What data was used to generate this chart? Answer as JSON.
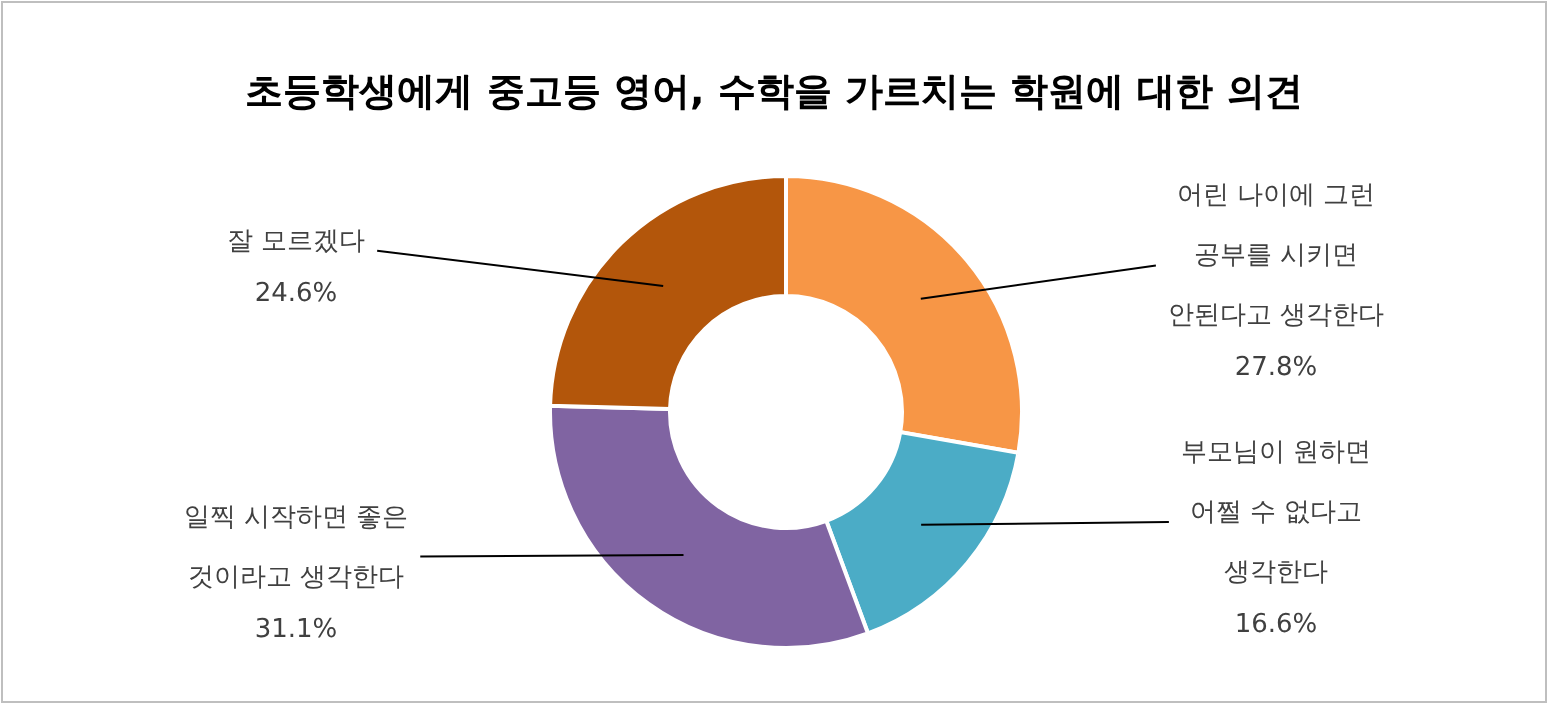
{
  "chart_data": {
    "type": "donut",
    "title": "초등학생에게 중고등 영어, 수학을 가르치는 학원에 대한 의견",
    "categories": [
      "어린 나이에 그런 공부를 시키면 안된다고 생각한다",
      "부모님이 원하면 어쩔 수 없다고 생각한다",
      "일찍 시작하면 좋은 것이라고 생각한다",
      "잘 모르겠다"
    ],
    "values": [
      27.8,
      16.6,
      31.1,
      24.6
    ],
    "value_labels": [
      "27.8%",
      "16.6%",
      "31.1%",
      "24.6%"
    ],
    "colors": [
      "#f79646",
      "#4bacc6",
      "#8064a2",
      "#b3560b"
    ]
  }
}
